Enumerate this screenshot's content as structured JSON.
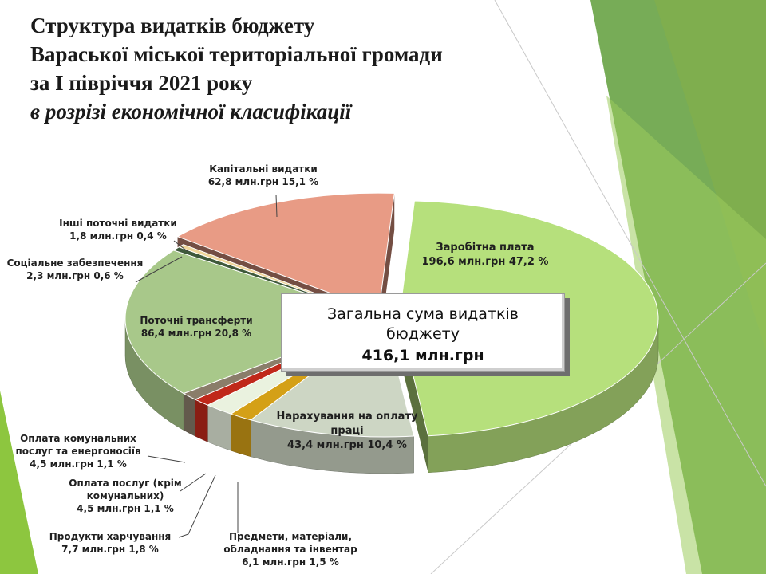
{
  "title": {
    "line1": "Структура видатків бюджету",
    "line2": "Вараської міської територіальної громади",
    "line3": "за I півріччя 2021 року",
    "line4": "в розрізі економічної класифікації"
  },
  "total": {
    "label_line1": "Загальна сума видатків",
    "label_line2": "бюджету",
    "amount": "416,1 млн.грн"
  },
  "chart_data": {
    "type": "pie",
    "title": "Структура видатків бюджету Вараської міської територіальної громади за I півріччя 2021 року",
    "unit": "млн.грн",
    "total": 416.1,
    "slices": [
      {
        "name": "Заробітна плата",
        "value": 196.6,
        "percent": 47.2,
        "label": "196,6 млн.грн 47,2 %",
        "color": "#b6e07c",
        "exploded": true
      },
      {
        "name": "Нарахування на оплату праці",
        "value": 43.4,
        "percent": 10.4,
        "label": "43,4 млн.грн 10,4 %",
        "color": "#cdd6c4"
      },
      {
        "name": "Предмети, матеріали, обладнання та інвентар",
        "value": 6.1,
        "percent": 1.5,
        "label": "6,1 млн.грн  1,5 %",
        "color": "#d4a017"
      },
      {
        "name": "Продукти харчування",
        "value": 7.7,
        "percent": 1.8,
        "label": "7,7 млн.грн 1,8 %",
        "color": "#eaf2df"
      },
      {
        "name": "Оплата послуг (крім комунальних)",
        "value": 4.5,
        "percent": 1.1,
        "label": "4,5 млн.грн 1,1 %",
        "color": "#c0281a"
      },
      {
        "name": "Оплата комунальних послуг та енергоносіїв",
        "value": 4.5,
        "percent": 1.1,
        "label": "4,5 млн.грн 1,1 %",
        "color": "#8a7d6a"
      },
      {
        "name": "Поточні трансферти",
        "value": 86.4,
        "percent": 20.8,
        "label": "86,4 млн.грн 20,8 %",
        "color": "#a8c88a"
      },
      {
        "name": "Соціальне забезпечення",
        "value": 2.3,
        "percent": 0.6,
        "label": "2,3 млн.грн 0,6 %",
        "color": "#3f5a3b"
      },
      {
        "name": "Інші поточні видатки",
        "value": 1.8,
        "percent": 0.4,
        "label": "1,8 млн.грн 0,4 %",
        "color": "#f0d59a"
      },
      {
        "name": "Капітальні видатки",
        "value": 62.8,
        "percent": 15.1,
        "label": "62,8 млн.грн 15,1 %",
        "color": "#e89b85",
        "exploded": true
      }
    ],
    "labels": {
      "zarplata": {
        "name": "Заробітна плата",
        "value": "196,6 млн.грн 47,2 %"
      },
      "narahuvannia": {
        "name1": "Нарахування на оплату",
        "name2": "праці",
        "value": "43,4 млн.грн 10,4 %"
      },
      "predmety": {
        "name1": "Предмети, матеріали,",
        "name2": "обладнання та інвентар",
        "value": "6,1 млн.грн  1,5 %"
      },
      "produkty": {
        "name": "Продукти харчування",
        "value": "7,7 млн.грн 1,8 %"
      },
      "posluhy": {
        "name1": "Оплата послуг (крім",
        "name2": "комунальних)",
        "value": "4,5 млн.грн 1,1 %"
      },
      "komunalni": {
        "name1": "Оплата комунальних",
        "name2": "послуг та енергоносіїв",
        "value": "4,5 млн.грн 1,1 %"
      },
      "transferty": {
        "name": "Поточні трансферти",
        "value": "86,4 млн.грн 20,8 %"
      },
      "sotsialne": {
        "name": "Соціальне забезпечення",
        "value": "2,3 млн.грн 0,6 %"
      },
      "inshi": {
        "name": "Інші поточні видатки",
        "value": "1,8 млн.грн 0,4 %"
      },
      "kapitalni": {
        "name": "Капітальні видатки",
        "value": "62,8 млн.грн 15,1 %"
      }
    }
  }
}
